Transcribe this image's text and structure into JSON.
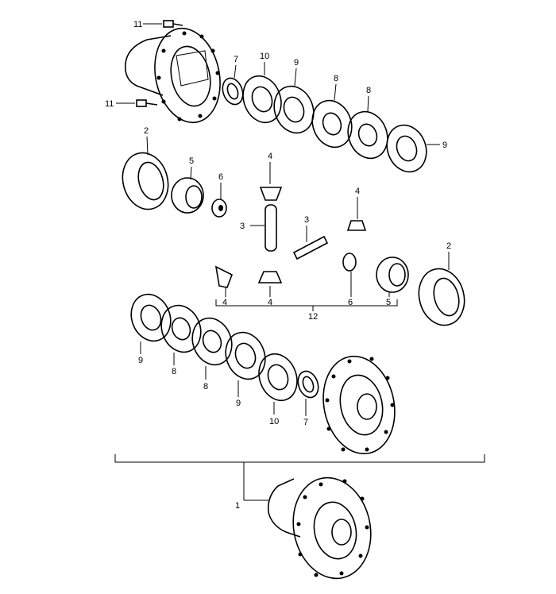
{
  "callouts": [
    {
      "id": "c11a",
      "text": "11"
    },
    {
      "id": "c11b",
      "text": "11"
    },
    {
      "id": "c7a",
      "text": "7"
    },
    {
      "id": "c10a",
      "text": "10"
    },
    {
      "id": "c9a",
      "text": "9"
    },
    {
      "id": "c8a",
      "text": "8"
    },
    {
      "id": "c8b",
      "text": "8"
    },
    {
      "id": "c9b",
      "text": "9"
    },
    {
      "id": "c2a",
      "text": "2"
    },
    {
      "id": "c5a",
      "text": "5"
    },
    {
      "id": "c6a",
      "text": "6"
    },
    {
      "id": "c4a",
      "text": "4"
    },
    {
      "id": "c4b",
      "text": "4"
    },
    {
      "id": "c3a",
      "text": "3"
    },
    {
      "id": "c3b",
      "text": "3"
    },
    {
      "id": "c2b",
      "text": "2"
    },
    {
      "id": "c4c",
      "text": "4"
    },
    {
      "id": "c4d",
      "text": "4"
    },
    {
      "id": "c6b",
      "text": "6"
    },
    {
      "id": "c5b",
      "text": "5"
    },
    {
      "id": "c12",
      "text": "12"
    },
    {
      "id": "c9c",
      "text": "9"
    },
    {
      "id": "c8c",
      "text": "8"
    },
    {
      "id": "c8d",
      "text": "8"
    },
    {
      "id": "c9d",
      "text": "9"
    },
    {
      "id": "c10b",
      "text": "10"
    },
    {
      "id": "c7b",
      "text": "7"
    },
    {
      "id": "c1",
      "text": "1"
    }
  ]
}
